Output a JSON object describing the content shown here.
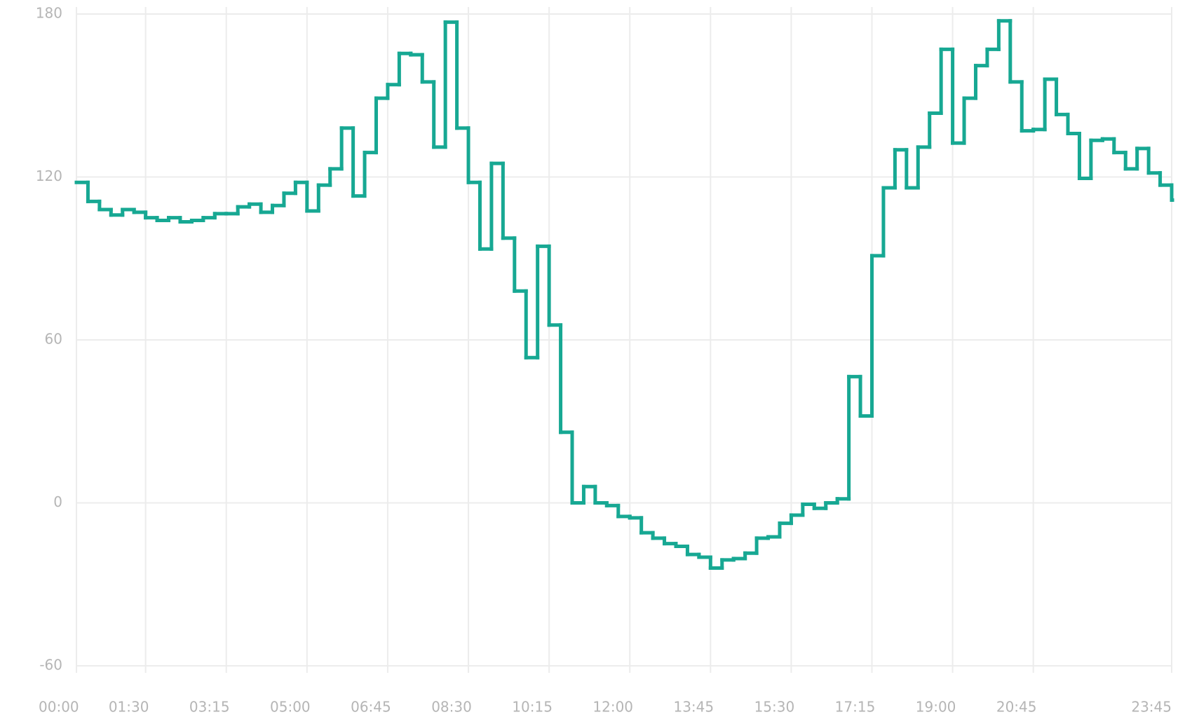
{
  "chart_data": {
    "type": "step",
    "color": "#17a893",
    "grid": true,
    "categories": [
      "00:00",
      null,
      null,
      null,
      null,
      null,
      "01:30",
      null,
      null,
      null,
      null,
      null,
      null,
      "03:15",
      null,
      null,
      null,
      null,
      null,
      null,
      "05:00",
      null,
      null,
      null,
      null,
      null,
      null,
      "06:45",
      null,
      null,
      null,
      null,
      null,
      null,
      "08:30",
      null,
      null,
      null,
      null,
      null,
      null,
      "10:15",
      null,
      null,
      null,
      null,
      null,
      null,
      "12:00",
      null,
      null,
      null,
      null,
      null,
      null,
      "13:45",
      null,
      null,
      null,
      null,
      null,
      null,
      "15:30",
      null,
      null,
      null,
      null,
      null,
      null,
      "17:15",
      null,
      null,
      null,
      null,
      null,
      null,
      "19:00",
      null,
      null,
      null,
      null,
      null,
      null,
      "20:45",
      null,
      null,
      null,
      null,
      null,
      null,
      null,
      null,
      null,
      null,
      null,
      "23:45"
    ],
    "values": [
      118,
      111,
      108,
      106,
      108,
      107,
      105,
      104,
      105,
      103.5,
      104,
      105,
      106.5,
      106.5,
      109,
      110,
      107,
      109.5,
      114,
      118,
      107.5,
      117,
      123,
      138,
      113,
      129,
      149,
      154,
      165.5,
      165,
      155,
      131,
      177,
      138,
      118,
      93.5,
      125,
      97.5,
      78,
      53.5,
      94.5,
      65.5,
      26,
      0,
      6,
      0,
      -1,
      -5,
      -5.5,
      -11,
      -13,
      -15,
      -16,
      -19,
      -20,
      -24,
      -21,
      -20.5,
      -18.5,
      -13,
      -12.5,
      -7.5,
      -4.5,
      -0.5,
      -2,
      0,
      1.5,
      46.5,
      32,
      91,
      116,
      130,
      116,
      131,
      143.5,
      167,
      132.5,
      149,
      161,
      167,
      177.5,
      155,
      137,
      137.5,
      156,
      143,
      136,
      119.5,
      133.5,
      134,
      129,
      123,
      130.5,
      121.5,
      117,
      111.5
    ],
    "ylim": [
      -60,
      180
    ],
    "yticks": [
      -60,
      0,
      60,
      120,
      180
    ]
  }
}
